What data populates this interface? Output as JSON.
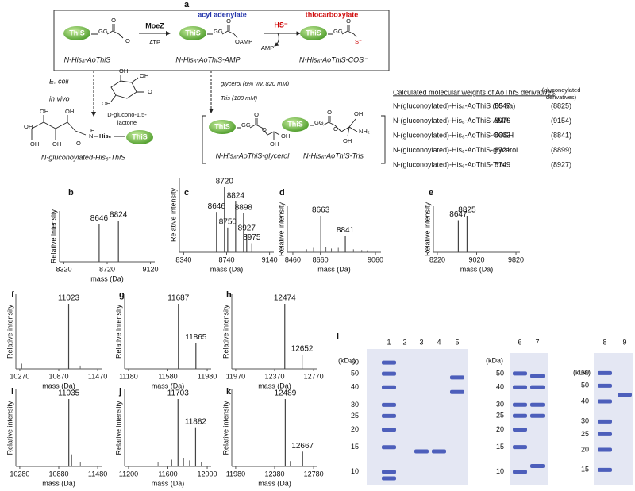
{
  "scheme": {
    "label": "a",
    "this": "ThiS",
    "gg": "GG",
    "moez": "MoeZ",
    "atp": "ATP",
    "acyl_adenylate": "acyl adenylate",
    "thiocarboxylate": "thiocarboxylate",
    "hs": "HS⁻",
    "amp": "AMP",
    "o": "O",
    "o_minus": "O⁻",
    "oamp": "OAMP",
    "s_minus": "S⁻",
    "oh": "OH",
    "nh2": "NH₂",
    "h": "H",
    "n": "N",
    "his6": "His₆",
    "products": [
      "N-His₆-AoThiS",
      "N-His₆-AoThiS-AMP",
      "N-His₆-AoThiS-COS⁻"
    ],
    "ecoli": "E. coli",
    "in_vivo": "in vivo",
    "lactone": [
      "D-glucono-1,5-",
      "lactone"
    ],
    "glycerol": "glycerol (6% v/v, 820 mM)",
    "tris": "Tris (100 mM)",
    "gluconoylated": "N-gluconoylated-His₆-ThiS",
    "glycerol_product": "N-His₆-AoThiS-glycerol",
    "tris_product": "N-His₆-AoThiS-Tris"
  },
  "table": {
    "title": "Calculated molecular weights of AoThiS derivatives",
    "note": [
      "(gluconoylated",
      "derivatives)"
    ],
    "rows": [
      [
        "N-(gluconoylated)-His₆-AoThiS (85 aa)",
        8647,
        "(8825)"
      ],
      [
        "N-(gluconoylated)-His₆-AoThiS-AMP",
        8976,
        "(9154)"
      ],
      [
        "N-(gluconoylated)-His₆-AoThiS-COSH",
        8663,
        "(8841)"
      ],
      [
        "N-(gluconoylated)-His₆-AoThiS-glycerol",
        8721,
        "(8899)"
      ],
      [
        "N-(gluconoylated)-His₆-AoThiS-Tris",
        8749,
        "(8927)"
      ]
    ]
  },
  "chart_data": [
    {
      "type": "spectrum",
      "label": "b",
      "ylabel": "Relative intensity",
      "xlabel": "mass (Da)",
      "xlim": [
        8280,
        9160
      ],
      "xticks": [
        8320,
        8720,
        9120
      ],
      "ylim": [
        0,
        100
      ],
      "x": [
        8646,
        8824
      ],
      "values": [
        92,
        100
      ]
    },
    {
      "type": "spectrum",
      "label": "c",
      "ylabel": "Relative intensity",
      "xlabel": "mass (Da)",
      "xlim": [
        8300,
        9180
      ],
      "xticks": [
        8340,
        8740,
        9140
      ],
      "ylim": [
        0,
        100
      ],
      "x": [
        8646,
        8720,
        8750,
        8824,
        8898,
        8927,
        8975
      ],
      "values": [
        62,
        100,
        38,
        78,
        60,
        28,
        14
      ]
    },
    {
      "type": "spectrum",
      "label": "d",
      "ylabel": "Relative intensity",
      "xlabel": "mass (Da)",
      "xlim": [
        8420,
        9100
      ],
      "xticks": [
        8460,
        8660,
        9060
      ],
      "ylim": [
        0,
        100
      ],
      "x": [
        8663,
        8841
      ],
      "values": [
        100,
        45
      ],
      "minor": {
        "x": [
          8560,
          8610,
          8700,
          8740,
          8790,
          8900,
          8960,
          9000
        ],
        "values": [
          8,
          12,
          14,
          10,
          12,
          8,
          6,
          5
        ]
      }
    },
    {
      "type": "spectrum",
      "label": "e",
      "ylabel": "Relative intensity",
      "xlabel": "mass (Da)",
      "xlim": [
        8140,
        9900
      ],
      "xticks": [
        8220,
        9020,
        9820
      ],
      "ylim": [
        0,
        100
      ],
      "x": [
        8647,
        8825
      ],
      "values": [
        88,
        100
      ]
    },
    {
      "type": "spectrum",
      "label": "f",
      "ylabel": "Relative intensity",
      "xlabel": "mass (Da)",
      "xlim": [
        10210,
        11530
      ],
      "xticks": [
        10270,
        10870,
        11470
      ],
      "ylim": [
        0,
        100
      ],
      "x": [
        11023
      ],
      "values": [
        100
      ],
      "minor": {
        "x": [
          10300,
          11201
        ],
        "values": [
          8,
          5
        ]
      }
    },
    {
      "type": "spectrum",
      "label": "g",
      "ylabel": "Relative intensity",
      "xlabel": "mass (Da)",
      "xlim": [
        11140,
        12020
      ],
      "xticks": [
        11180,
        11580,
        11980
      ],
      "ylim": [
        0,
        100
      ],
      "x": [
        11687,
        11865
      ],
      "values": [
        100,
        40
      ]
    },
    {
      "type": "spectrum",
      "label": "h",
      "ylabel": "Relative intensity",
      "xlabel": "mass (Da)",
      "xlim": [
        11930,
        12810
      ],
      "xticks": [
        11970,
        12370,
        12770
      ],
      "ylim": [
        0,
        100
      ],
      "x": [
        12474,
        12652
      ],
      "values": [
        100,
        22
      ]
    },
    {
      "type": "spectrum",
      "label": "i",
      "ylabel": "Relative intensity",
      "xlabel": "mass (Da)",
      "xlim": [
        10220,
        11540
      ],
      "xticks": [
        10280,
        10880,
        11480
      ],
      "ylim": [
        0,
        100
      ],
      "x": [
        11035
      ],
      "values": [
        100
      ],
      "minor": {
        "x": [
          11080,
          11213
        ],
        "values": [
          18,
          6
        ]
      }
    },
    {
      "type": "spectrum",
      "label": "j",
      "ylabel": "Relative intensity",
      "xlabel": "mass (Da)",
      "xlim": [
        11160,
        12040
      ],
      "xticks": [
        11200,
        11600,
        12000
      ],
      "ylim": [
        0,
        100
      ],
      "x": [
        11703,
        11882
      ],
      "values": [
        100,
        58
      ],
      "minor": {
        "x": [
          11500,
          11640,
          11760,
          11820,
          11940
        ],
        "values": [
          6,
          10,
          12,
          9,
          7
        ]
      }
    },
    {
      "type": "spectrum",
      "label": "k",
      "ylabel": "Relative intensity",
      "xlabel": "mass (Da)",
      "xlim": [
        11940,
        12820
      ],
      "xticks": [
        11980,
        12380,
        12780
      ],
      "ylim": [
        0,
        100
      ],
      "x": [
        12489,
        12667
      ],
      "values": [
        100,
        22
      ],
      "minor": {
        "x": [
          12540
        ],
        "values": [
          8
        ]
      }
    },
    {
      "type": "gel",
      "label": "l",
      "ylabel": "(kDa)",
      "log": true,
      "ylim": [
        8,
        75
      ],
      "yticks": [
        60,
        50,
        40,
        30,
        25,
        20,
        15,
        10
      ],
      "color": "#3347b0",
      "categories": [
        "1",
        "2",
        "3",
        "4",
        "5"
      ],
      "bands": [
        [
          60,
          50,
          40,
          30,
          25,
          20,
          15,
          10,
          9
        ],
        [],
        [
          14
        ],
        [
          14
        ],
        [
          47,
          37
        ]
      ]
    },
    {
      "type": "gel",
      "ylabel": "(kDa)",
      "log": true,
      "ylim": [
        8,
        70
      ],
      "yticks": [
        50,
        40,
        30,
        25,
        20,
        15,
        10
      ],
      "color": "#3347b0",
      "categories": [
        "6",
        "7"
      ],
      "bands": [
        [
          50,
          40,
          30,
          25,
          20,
          15,
          10
        ],
        [
          48,
          40,
          30,
          25,
          11
        ]
      ]
    },
    {
      "type": "gel",
      "ylabel": "(kDa)",
      "log": true,
      "ylim": [
        12,
        80
      ],
      "yticks": [
        60,
        50,
        40,
        30,
        25,
        20,
        15
      ],
      "color": "#3347b0",
      "categories": [
        "8",
        "9"
      ],
      "bands": [
        [
          60,
          50,
          40,
          30,
          25,
          20,
          15
        ],
        [
          44
        ]
      ]
    }
  ]
}
